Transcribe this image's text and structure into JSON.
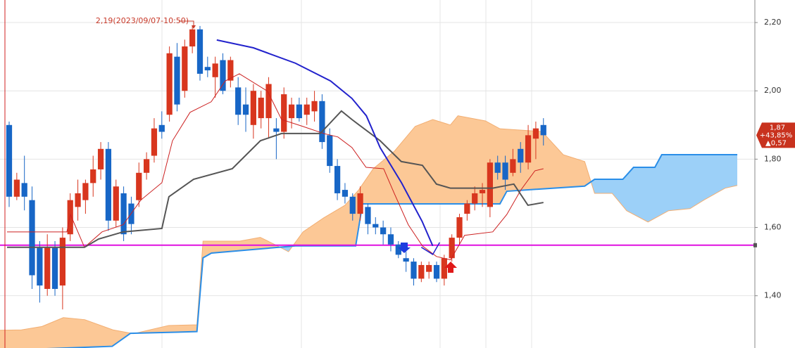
{
  "chart_data": {
    "type": "candlestick",
    "open": [
      1.9,
      1.69,
      1.73,
      1.68,
      1.54,
      1.42,
      1.54,
      1.43,
      1.58,
      1.66,
      1.68,
      1.73,
      1.77,
      1.83,
      1.62,
      1.7,
      1.67,
      1.68,
      1.76,
      1.81,
      1.9,
      1.93,
      2.1,
      2.0,
      2.13,
      2.18,
      2.07,
      2.04,
      2.09,
      2.03,
      2.01,
      1.96,
      1.9,
      1.92,
      1.92,
      1.89,
      1.88,
      1.92,
      1.96,
      1.93,
      1.94,
      1.97,
      1.87,
      1.78,
      1.71,
      1.69,
      1.64,
      1.66,
      1.61,
      1.6,
      1.58,
      1.55,
      1.51,
      1.5,
      1.45,
      1.47,
      1.49,
      1.45,
      1.51,
      1.57,
      1.64,
      1.67,
      1.7,
      1.66,
      1.79,
      1.79,
      1.76,
      1.83,
      1.79,
      1.86,
      1.9
    ],
    "high": [
      1.91,
      1.76,
      1.81,
      1.72,
      1.56,
      1.58,
      1.56,
      1.6,
      1.7,
      1.74,
      1.74,
      1.81,
      1.85,
      1.85,
      1.74,
      1.72,
      1.69,
      1.79,
      1.82,
      1.92,
      1.94,
      2.13,
      2.14,
      2.15,
      2.19,
      2.19,
      2.1,
      2.1,
      2.11,
      2.1,
      2.04,
      2.01,
      2.02,
      2.0,
      2.04,
      1.92,
      2.01,
      1.98,
      1.98,
      1.98,
      2.0,
      1.99,
      1.89,
      1.8,
      1.73,
      1.7,
      1.72,
      1.67,
      1.63,
      1.62,
      1.6,
      1.56,
      1.53,
      1.51,
      1.5,
      1.5,
      1.5,
      1.52,
      1.58,
      1.64,
      1.68,
      1.72,
      1.73,
      1.8,
      1.81,
      1.81,
      1.83,
      1.85,
      1.9,
      1.91,
      1.92
    ],
    "low": [
      1.66,
      1.68,
      1.65,
      1.42,
      1.38,
      1.4,
      1.4,
      1.36,
      1.56,
      1.62,
      1.64,
      1.69,
      1.74,
      1.59,
      1.6,
      1.56,
      1.58,
      1.66,
      1.74,
      1.79,
      1.86,
      1.91,
      1.94,
      1.98,
      2.11,
      2.03,
      2.04,
      1.98,
      1.99,
      2.01,
      1.9,
      1.88,
      1.86,
      1.89,
      1.86,
      1.8,
      1.86,
      1.89,
      1.91,
      1.9,
      1.91,
      1.83,
      1.76,
      1.68,
      1.67,
      1.62,
      1.62,
      1.58,
      1.58,
      1.55,
      1.53,
      1.51,
      1.47,
      1.43,
      1.44,
      1.45,
      1.44,
      1.43,
      1.5,
      1.55,
      1.62,
      1.65,
      1.66,
      1.63,
      1.74,
      1.71,
      1.75,
      1.76,
      1.77,
      1.8,
      1.84
    ],
    "close": [
      1.69,
      1.74,
      1.69,
      1.46,
      1.43,
      1.54,
      1.42,
      1.57,
      1.68,
      1.7,
      1.73,
      1.77,
      1.83,
      1.62,
      1.72,
      1.58,
      1.61,
      1.76,
      1.8,
      1.89,
      1.88,
      2.11,
      1.96,
      2.13,
      2.18,
      2.05,
      2.06,
      2.08,
      2.0,
      2.09,
      1.93,
      1.93,
      2.0,
      1.98,
      2.02,
      1.88,
      1.99,
      1.96,
      1.92,
      1.96,
      1.97,
      1.85,
      1.78,
      1.7,
      1.69,
      1.64,
      1.7,
      1.61,
      1.6,
      1.58,
      1.55,
      1.52,
      1.5,
      1.45,
      1.49,
      1.49,
      1.45,
      1.51,
      1.57,
      1.63,
      1.67,
      1.7,
      1.71,
      1.79,
      1.76,
      1.74,
      1.8,
      1.79,
      1.87,
      1.89,
      1.87
    ],
    "up_color": "#d8361e",
    "down_color": "#1766c6",
    "xlim": [
      -1.2,
      97.7
    ],
    "ylim": [
      1.247,
      2.266
    ],
    "yticks": [
      {
        "value": 2.2,
        "label": "2,20"
      },
      {
        "value": 2.0,
        "label": "2,00"
      },
      {
        "value": 1.8,
        "label": "1,80"
      },
      {
        "value": 1.6,
        "label": "1,60"
      },
      {
        "value": 1.4,
        "label": "1,40"
      }
    ],
    "grid": true,
    "cloud": {
      "x_a": [
        -1.2,
        1.6,
        4.3,
        7.1,
        9.9,
        13.6,
        16.3,
        20.9,
        24.6,
        25.4,
        30.2,
        32.9,
        34.8,
        36.6,
        38.5,
        41.2,
        44.0,
        45.8,
        47.7,
        50.5,
        53.2,
        55.5,
        57.8,
        58.8,
        62.4,
        64.3,
        69.8,
        72.6,
        75.4,
        76.7,
        79.0,
        80.9,
        83.7,
        86.4,
        89.2,
        91.0,
        93.8,
        95.4
      ],
      "span_a": [
        1.299,
        1.3,
        1.31,
        1.336,
        1.33,
        1.3,
        1.289,
        1.313,
        1.315,
        1.56,
        1.56,
        1.571,
        1.55,
        1.529,
        1.587,
        1.628,
        1.665,
        1.71,
        1.772,
        1.824,
        1.896,
        1.916,
        1.9,
        1.927,
        1.912,
        1.889,
        1.881,
        1.813,
        1.793,
        1.7,
        1.7,
        1.649,
        1.616,
        1.649,
        1.655,
        1.68,
        1.715,
        1.723
      ],
      "x_b": [
        -1.2,
        13.5,
        15.9,
        24.6,
        25.4,
        26.5,
        37.5,
        45.4,
        46.3,
        64.3,
        65.2,
        75.4,
        76.7,
        80.4,
        81.8,
        84.6,
        85.5,
        95.4
      ],
      "span_b": [
        1.24,
        1.252,
        1.29,
        1.295,
        1.511,
        1.525,
        1.546,
        1.546,
        1.669,
        1.669,
        1.706,
        1.721,
        1.741,
        1.741,
        1.776,
        1.776,
        1.813,
        1.813
      ],
      "bull_color": "#fcc896",
      "bear_color": "#9cd0f8",
      "edge_color": "#2a8ee8"
    },
    "lines": [
      {
        "color": "#cc2020",
        "width": 1,
        "x": [
          -0.28,
          7.56,
          8.02,
          9.87,
          12.17,
          14.94,
          17.24,
          20.01,
          21.4,
          23.7,
          26.47,
          28.31,
          30.16,
          33.85,
          35.69,
          38.46,
          41.22,
          43.07,
          44.91,
          46.76,
          49.06,
          50.45,
          52.29,
          54.14,
          55.98,
          57.82,
          59.67,
          63.36,
          65.2,
          67.05,
          68.89,
          70.0
        ],
        "values": [
          1.587,
          1.587,
          1.638,
          1.542,
          1.587,
          1.608,
          1.68,
          1.731,
          1.854,
          1.937,
          1.968,
          2.029,
          2.05,
          1.999,
          1.916,
          1.896,
          1.875,
          1.865,
          1.834,
          1.776,
          1.772,
          1.7,
          1.608,
          1.546,
          1.515,
          1.505,
          1.577,
          1.587,
          1.638,
          1.71,
          1.766,
          1.772
        ]
      },
      {
        "color": "#555555",
        "width": 2,
        "x": [
          -0.28,
          9.87,
          11.71,
          14.94,
          20.01,
          20.93,
          24.16,
          29.23,
          32.92,
          35.69,
          40.76,
          43.53,
          44.91,
          48.6,
          51.37,
          54.14,
          55.98,
          57.82,
          63.36,
          66.12,
          67.97,
          70.0
        ],
        "values": [
          1.542,
          1.542,
          1.566,
          1.587,
          1.597,
          1.69,
          1.741,
          1.772,
          1.854,
          1.875,
          1.875,
          1.941,
          1.916,
          1.854,
          1.793,
          1.782,
          1.727,
          1.715,
          1.715,
          1.727,
          1.665,
          1.673
        ]
      },
      {
        "color": "#2222cc",
        "width": 2,
        "x": [
          27.2,
          32.0,
          37.5,
          42.1,
          44.9,
          46.8,
          48.6,
          51.4,
          54.1,
          55.5
        ],
        "values": [
          2.149,
          2.126,
          2.081,
          2.029,
          1.978,
          1.927,
          1.834,
          1.731,
          1.618,
          1.546
        ]
      },
      {
        "color": "#2222cc",
        "width": 1.5,
        "x": [
          54.0,
          55.5,
          56.4
        ],
        "values": [
          1.542,
          1.521,
          1.556
        ]
      }
    ],
    "hline": {
      "value": 1.548,
      "color": "#e010e0"
    },
    "annotation": "2,19(2023/09/07-10:50)",
    "last_price": {
      "price": {
        "value": 1.87,
        "label": "1,87"
      },
      "change_pct": {
        "value": 43.85,
        "label": "+43,85%"
      },
      "change": {
        "value": 0.57,
        "label": "▲0,57"
      }
    }
  }
}
